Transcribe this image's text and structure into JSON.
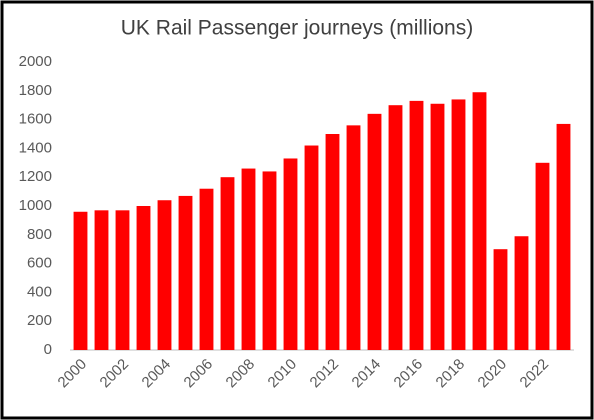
{
  "chart_data": {
    "type": "bar",
    "title": "UK Rail Passenger journeys (millions)",
    "categories": [
      "2000",
      null,
      "2002",
      null,
      "2004",
      null,
      "2006",
      null,
      "2008",
      null,
      "2010",
      null,
      "2012",
      null,
      "2014",
      null,
      "2016",
      null,
      "2018",
      null,
      "2020",
      null,
      "2022",
      null
    ],
    "values": [
      960,
      970,
      970,
      1000,
      1040,
      1070,
      1120,
      1200,
      1260,
      1240,
      1330,
      1420,
      1500,
      1560,
      1640,
      1700,
      1730,
      1710,
      1740,
      1790,
      700,
      790,
      1300,
      1570
    ],
    "color": "#ff0000",
    "ylim": [
      0,
      2000
    ],
    "yticks": [
      0,
      200,
      400,
      600,
      800,
      1000,
      1200,
      1400,
      1600,
      1800,
      2000
    ],
    "grid": false
  }
}
